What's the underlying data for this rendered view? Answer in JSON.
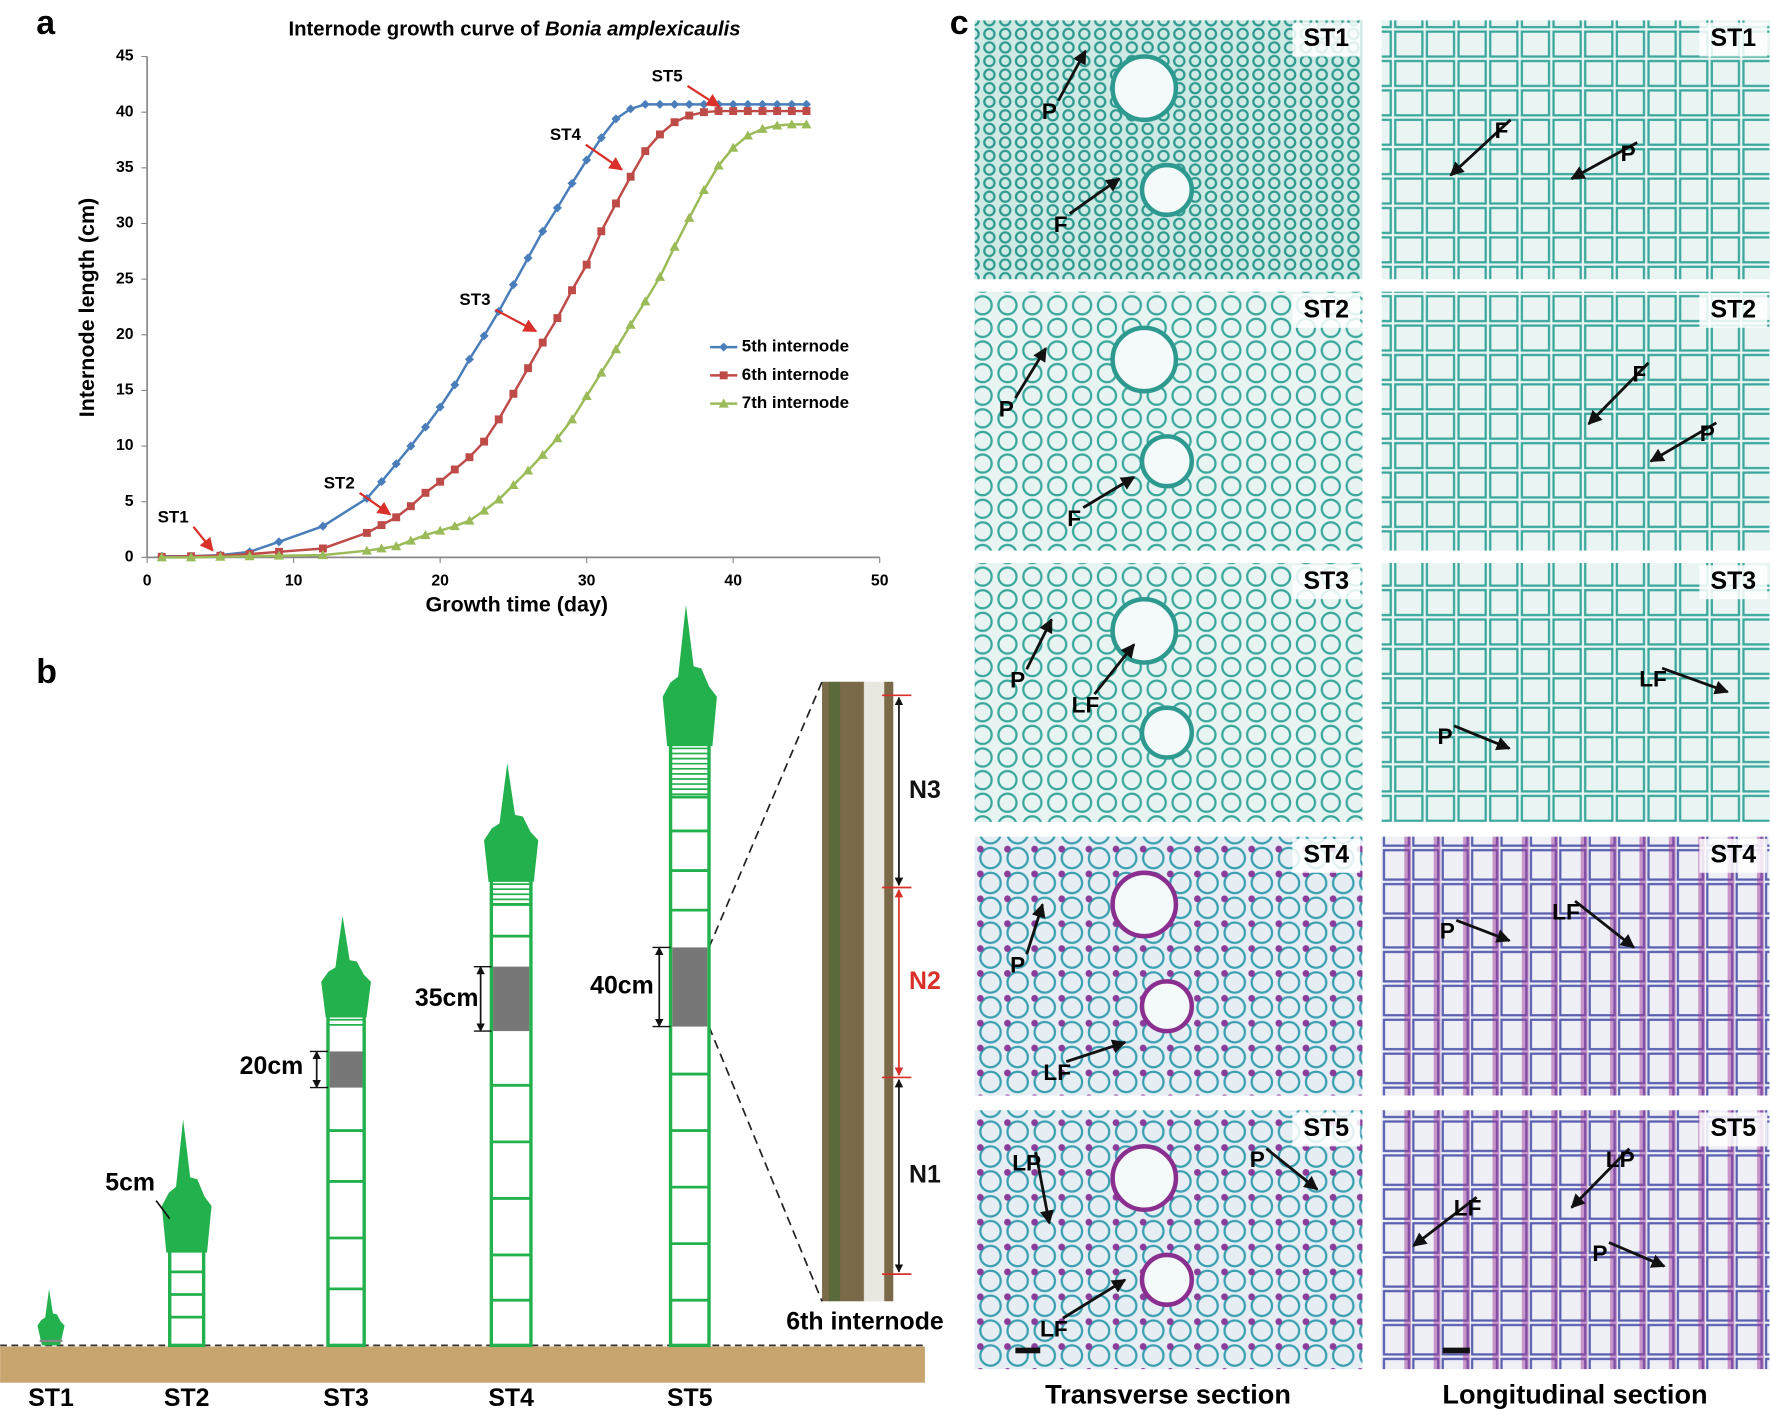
{
  "chart_data": {
    "type": "line",
    "panel_label": "a",
    "title": "Internode growth curve of ",
    "title_italic": "Bonia amplexicaulis",
    "x_label": "Growth time (day)",
    "y_label": "Internode length (cm)",
    "x": [
      1,
      3,
      5,
      7,
      9,
      12,
      15,
      16,
      17,
      18,
      19,
      20,
      21,
      22,
      23,
      24,
      25,
      26,
      27,
      28,
      29,
      30,
      31,
      32,
      33,
      34,
      35,
      36,
      37,
      38,
      39,
      40,
      41,
      42,
      43,
      44,
      45
    ],
    "series": [
      {
        "name": "5th internode",
        "color": "#4a7ebb",
        "marker": "diamond",
        "values": [
          0.1,
          0.1,
          0.2,
          0.5,
          1.4,
          2.8,
          5.3,
          6.8,
          8.4,
          10,
          11.7,
          13.5,
          15.5,
          17.8,
          19.9,
          22.1,
          24.5,
          26.9,
          29.3,
          31.4,
          33.6,
          35.7,
          37.7,
          39.4,
          40.3,
          40.7,
          40.7,
          40.7,
          40.7,
          40.7,
          40.7,
          40.7,
          40.7,
          40.7,
          40.7,
          40.7,
          40.7
        ]
      },
      {
        "name": "6th internode",
        "color": "#be4b48",
        "marker": "square",
        "values": [
          0.05,
          0.1,
          0.15,
          0.3,
          0.5,
          0.8,
          2.2,
          2.9,
          3.6,
          4.6,
          5.8,
          6.8,
          7.9,
          9,
          10.4,
          12.4,
          14.7,
          17,
          19.3,
          21.5,
          24,
          26.3,
          29.3,
          31.8,
          34.2,
          36.5,
          38,
          39.1,
          39.7,
          40,
          40.1,
          40.1,
          40.1,
          40.1,
          40.1,
          40.1,
          40.1
        ]
      },
      {
        "name": "7th internode",
        "color": "#9bbb59",
        "marker": "triangle",
        "values": [
          0,
          0,
          0.05,
          0.1,
          0.15,
          0.2,
          0.6,
          0.8,
          1,
          1.5,
          2,
          2.4,
          2.8,
          3.3,
          4.2,
          5.2,
          6.5,
          7.8,
          9.2,
          10.7,
          12.4,
          14.5,
          16.6,
          18.7,
          20.9,
          23,
          25.2,
          27.9,
          30.5,
          33,
          35.2,
          36.8,
          37.9,
          38.5,
          38.8,
          38.9,
          38.9
        ]
      }
    ],
    "xlim": [
      0,
      50
    ],
    "xticks": [
      0,
      10,
      20,
      30,
      40,
      50
    ],
    "ylim": [
      0,
      45
    ],
    "yticks": [
      0,
      5,
      10,
      15,
      20,
      25,
      30,
      35,
      40,
      45
    ],
    "legend": "right",
    "annotation_color": "#d9302a",
    "annotations": [
      "ST1",
      "ST2",
      "ST3",
      "ST4",
      "ST5"
    ]
  },
  "panel_b": {
    "label": "b",
    "stages": [
      "ST1",
      "ST2",
      "ST3",
      "ST4",
      "ST5"
    ],
    "lengths": [
      "5cm",
      "20cm",
      "35cm",
      "40cm"
    ],
    "segments": [
      "N3",
      "N2",
      "N1"
    ],
    "photo_caption": "6th internode"
  },
  "panel_c": {
    "label": "c",
    "captions": [
      "Transverse section",
      "Longitudinal section"
    ],
    "images": [
      {
        "stage": "ST1",
        "labels": [
          "P",
          "F"
        ]
      },
      {
        "stage": "ST1",
        "labels": [
          "F",
          "P"
        ]
      },
      {
        "stage": "ST2",
        "labels": [
          "P",
          "F"
        ]
      },
      {
        "stage": "ST2",
        "labels": [
          "F",
          "P"
        ]
      },
      {
        "stage": "ST3",
        "labels": [
          "P",
          "LF"
        ]
      },
      {
        "stage": "ST3",
        "labels": [
          "LF",
          "P"
        ]
      },
      {
        "stage": "ST4",
        "labels": [
          "P",
          "LF"
        ]
      },
      {
        "stage": "ST4",
        "labels": [
          "P",
          "LF"
        ]
      },
      {
        "stage": "ST5",
        "labels": [
          "LP",
          "P",
          "LF"
        ]
      },
      {
        "stage": "ST5",
        "labels": [
          "LF",
          "LP",
          "P"
        ]
      }
    ]
  }
}
